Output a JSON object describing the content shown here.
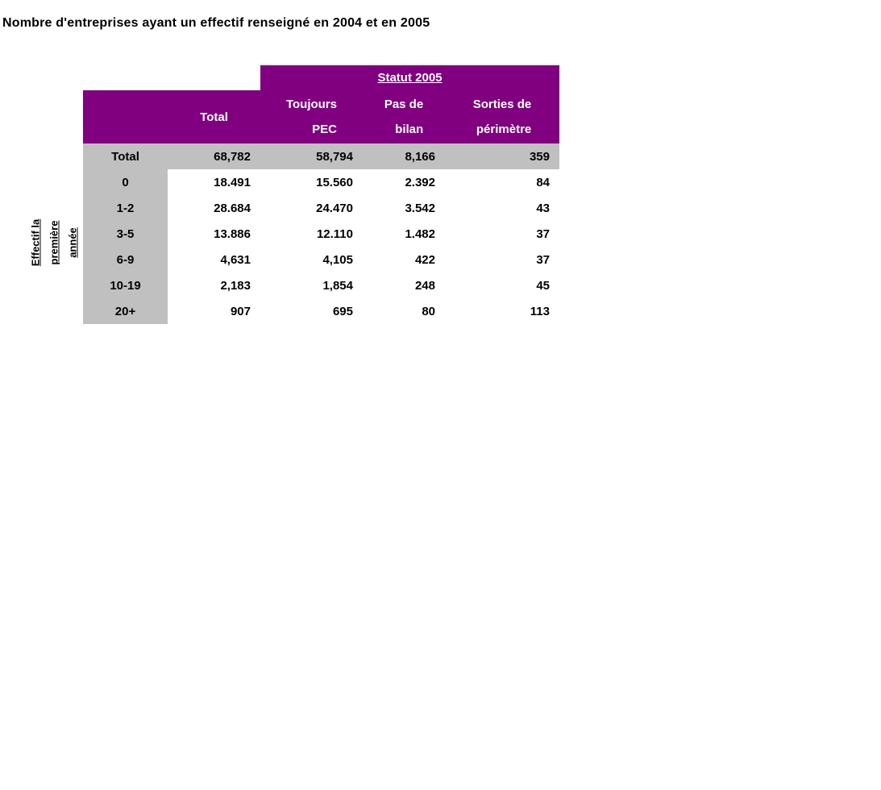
{
  "title": "Nombre d'entreprises ayant un effectif renseigné en 2004 et en 2005",
  "table": {
    "group_header": "Statut 2005",
    "row_axis_label": [
      "Effectif la",
      "première",
      "année"
    ],
    "columns": [
      {
        "line1": "Total",
        "line2": ""
      },
      {
        "line1": "Toujours",
        "line2": "PEC"
      },
      {
        "line1": "Pas de",
        "line2": "bilan"
      },
      {
        "line1": "Sorties de",
        "line2": "périmètre"
      }
    ],
    "rows": [
      {
        "label": "Total",
        "cells": [
          "68,782",
          "58,794",
          "8,166",
          "359"
        ]
      },
      {
        "label": "0",
        "cells": [
          "18.491",
          "15.560",
          "2.392",
          "84"
        ]
      },
      {
        "label": "1-2",
        "cells": [
          "28.684",
          "24.470",
          "3.542",
          "43"
        ]
      },
      {
        "label": "3-5",
        "cells": [
          "13.886",
          "12.110",
          "1.482",
          "37"
        ]
      },
      {
        "label": "6-9",
        "cells": [
          "4,631",
          "4,105",
          "422",
          "37"
        ]
      },
      {
        "label": "10-19",
        "cells": [
          "2,183",
          "1,854",
          "248",
          "45"
        ]
      },
      {
        "label": "20+",
        "cells": [
          "907",
          "695",
          "80",
          "113"
        ]
      }
    ],
    "colors": {
      "header_bg": "#800080",
      "header_text": "#FFFFFF",
      "total_row_bg": "#C0C0C0",
      "label_column_bg": "#C0C0C0",
      "body_text": "#000000",
      "page_bg": "#FFFFFF"
    }
  }
}
